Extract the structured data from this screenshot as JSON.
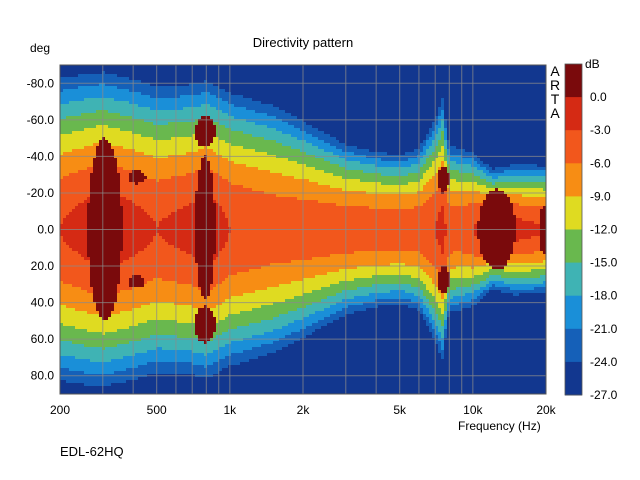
{
  "chart_data": {
    "type": "heatmap",
    "title": "Directivity pattern",
    "ylabel": "deg",
    "xlabel": "Frequency (Hz)",
    "colorbar_label": "dB",
    "brand_mark": [
      "A",
      "R",
      "T",
      "A"
    ],
    "caption": "EDL-62HQ",
    "x_scale": "log",
    "xlim": [
      200,
      20000
    ],
    "x_ticks": [
      200,
      500,
      1000,
      2000,
      5000,
      10000,
      20000
    ],
    "x_tick_labels": [
      "200",
      "500",
      "1k",
      "2k",
      "5k",
      "10k",
      "20k"
    ],
    "ylim": [
      -90,
      90
    ],
    "y_ticks": [
      -80,
      -60,
      -40,
      -20,
      0,
      20,
      40,
      60,
      80
    ],
    "y_tick_labels": [
      "-80.0",
      "-60.0",
      "-40.0",
      "-20.0",
      "0.0",
      "20.0",
      "40.0",
      "60.0",
      "80.0"
    ],
    "grid": true,
    "colorbar": {
      "levels": [
        0,
        -3,
        -6,
        -9,
        -12,
        -15,
        -18,
        -21,
        -24,
        -27
      ],
      "tick_labels": [
        "0.0",
        "-3.0",
        "-6.0",
        "-9.0",
        "-12.0",
        "-15.0",
        "-18.0",
        "-21.0",
        "-24.0",
        "-27.0"
      ],
      "colors": [
        "#7a0a0c",
        "#d52a14",
        "#f2571c",
        "#f78d14",
        "#dfdb21",
        "#69b84e",
        "#3fb3b4",
        "#1a8fd8",
        "#1560b8",
        "#12378f"
      ]
    },
    "series_profile_db": {
      "frequencies_hz": [
        200,
        250,
        300,
        400,
        500,
        700,
        800,
        1000,
        1500,
        2000,
        3000,
        4000,
        5000,
        6000,
        7000,
        7500,
        8000,
        9000,
        10000,
        12000,
        15000,
        20000
      ],
      "beam_half_width_deg": [
        95,
        95,
        94,
        92,
        90,
        89,
        89,
        86,
        80,
        70,
        55,
        50,
        48,
        52,
        70,
        80,
        54,
        52,
        48,
        36,
        40,
        40
      ],
      "on_axis_level_db": [
        -3,
        -2,
        -1,
        -2,
        -3,
        -2,
        -1,
        -3,
        -4,
        -4,
        -4,
        -4,
        -4,
        -4,
        -3,
        -2,
        -4,
        -4,
        -3,
        -1,
        -2,
        -3
      ]
    },
    "peak_regions": [
      {
        "freq_hz": [
          260,
          360
        ],
        "angle_deg": [
          -50,
          50
        ]
      },
      {
        "freq_hz": [
          380,
          450
        ],
        "angle_deg": [
          -32,
          -25
        ]
      },
      {
        "freq_hz": [
          380,
          450
        ],
        "angle_deg": [
          25,
          32
        ]
      },
      {
        "freq_hz": [
          720,
          870
        ],
        "angle_deg": [
          -62,
          -45
        ]
      },
      {
        "freq_hz": [
          720,
          870
        ],
        "angle_deg": [
          -40,
          38
        ]
      },
      {
        "freq_hz": [
          720,
          870
        ],
        "angle_deg": [
          42,
          62
        ]
      },
      {
        "freq_hz": [
          7200,
          8000
        ],
        "angle_deg": [
          -35,
          -20
        ]
      },
      {
        "freq_hz": [
          7200,
          8000
        ],
        "angle_deg": [
          20,
          35
        ]
      },
      {
        "freq_hz": [
          10500,
          15000
        ],
        "angle_deg": [
          -22,
          22
        ]
      },
      {
        "freq_hz": [
          19000,
          20000
        ],
        "angle_deg": [
          -15,
          15
        ]
      }
    ]
  }
}
